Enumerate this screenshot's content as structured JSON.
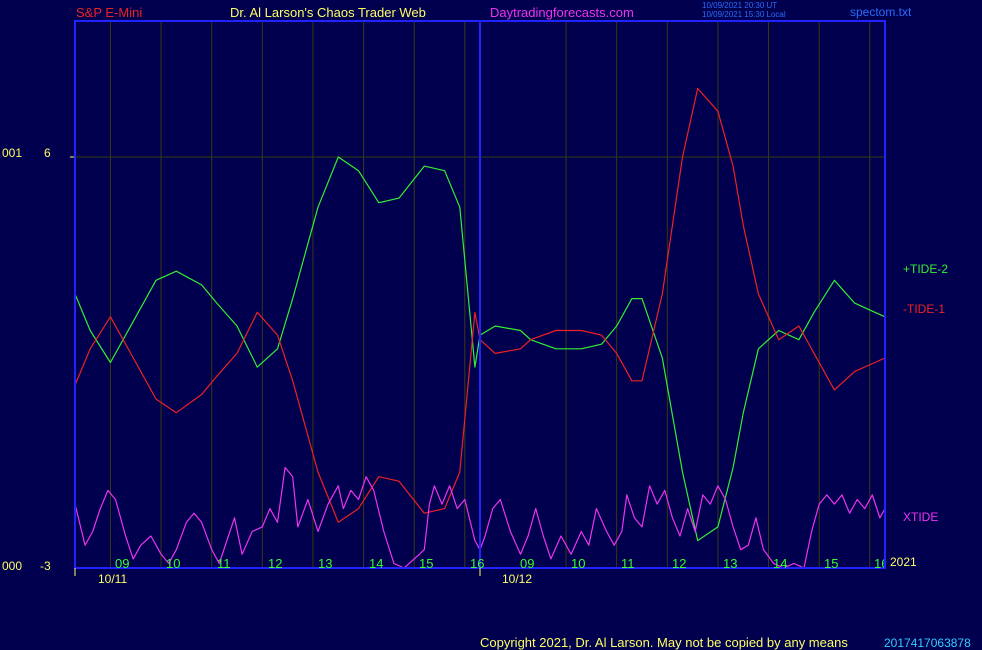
{
  "header": {
    "instrument": "S&P E-Mini",
    "site": "Dr. Al Larson's Chaos Trader Web",
    "url": "Daytradingforecasts.com",
    "stamp_utc": "10/09/2021 20:30 UT",
    "stamp_local": "10/09/2021 15:30 Local",
    "file": "spectom.txt"
  },
  "y_axis": {
    "top_prefix": "001",
    "top_label": "6",
    "bottom_prefix": "000",
    "bottom_label": "-3"
  },
  "x_axis": {
    "hour_ticks_day1": [
      "09",
      "10",
      "11",
      "12",
      "13",
      "14",
      "15",
      "16"
    ],
    "hour_ticks_day2": [
      "09",
      "10",
      "11",
      "12",
      "13",
      "14",
      "15",
      "16"
    ],
    "date1": "10/11",
    "date2": "10/12",
    "year": "2021"
  },
  "legend": {
    "tide2": "+TIDE-2",
    "tide1": "-TIDE-1",
    "xtide": "XTIDE"
  },
  "footer": {
    "copyright": "Copyright 2021, Dr. Al Larson. May not be copied by any means",
    "code": "2017417063878"
  },
  "colors": {
    "background": "#00004e",
    "frame": "#2222ff",
    "grid": "#3a3a12",
    "tide2": "#33ee33",
    "tide1": "#ee2222",
    "xtide": "#ee33ee",
    "title": "#ee2222",
    "site": "#ffff66",
    "url": "#ee33ee"
  },
  "chart_data": {
    "type": "line",
    "ylim": [
      -3,
      8
    ],
    "xlim": [
      0,
      16
    ],
    "series": [
      {
        "name": "+TIDE-2",
        "x": [
          0,
          0.3,
          0.7,
          1.2,
          1.6,
          2.0,
          2.5,
          2.8,
          3.2,
          3.6,
          4.0,
          4.3,
          4.8,
          5.2,
          5.6,
          6.0,
          6.4,
          6.9,
          7.3,
          7.6,
          7.9,
          8.0,
          8.3,
          8.8,
          9.0,
          9.5,
          10.0,
          10.4,
          10.7,
          11.0,
          11.2,
          11.6,
          12.0,
          12.3,
          12.7,
          13.0,
          13.2,
          13.5,
          13.9,
          14.3,
          14.6,
          15.0,
          15.4,
          15.8,
          16.0
        ],
        "y": [
          3.0,
          2.2,
          1.5,
          2.5,
          3.3,
          3.5,
          3.2,
          2.8,
          2.3,
          1.4,
          1.8,
          2.9,
          4.9,
          6.0,
          5.7,
          5.0,
          5.1,
          5.8,
          5.7,
          4.9,
          1.4,
          2.1,
          2.3,
          2.2,
          2.0,
          1.8,
          1.8,
          1.9,
          2.3,
          2.9,
          2.9,
          1.6,
          -0.9,
          -2.4,
          -2.1,
          -0.8,
          0.4,
          1.8,
          2.2,
          2.0,
          2.6,
          3.3,
          2.8,
          2.6,
          2.5
        ],
        "style": {
          "stroke": "#33ee33"
        }
      },
      {
        "name": "-TIDE-1",
        "x": [
          0,
          0.3,
          0.7,
          1.2,
          1.6,
          2.0,
          2.5,
          2.8,
          3.2,
          3.6,
          4.0,
          4.3,
          4.8,
          5.2,
          5.6,
          6.0,
          6.4,
          6.9,
          7.3,
          7.6,
          7.9,
          8.0,
          8.3,
          8.8,
          9.0,
          9.5,
          10.0,
          10.4,
          10.7,
          11.0,
          11.2,
          11.6,
          12.0,
          12.3,
          12.7,
          13.0,
          13.2,
          13.5,
          13.9,
          14.3,
          14.6,
          15.0,
          15.4,
          15.8,
          16.0
        ],
        "y": [
          1.0,
          1.8,
          2.5,
          1.5,
          0.7,
          0.4,
          0.8,
          1.2,
          1.7,
          2.6,
          2.1,
          1.1,
          -0.9,
          -2.0,
          -1.7,
          -1.0,
          -1.1,
          -1.8,
          -1.7,
          -0.9,
          2.6,
          2.0,
          1.7,
          1.8,
          2.0,
          2.2,
          2.2,
          2.1,
          1.7,
          1.1,
          1.1,
          3.0,
          6.0,
          7.5,
          7.0,
          5.8,
          4.5,
          3.0,
          2.0,
          2.3,
          1.7,
          0.9,
          1.3,
          1.5,
          1.6
        ],
        "style": {
          "stroke": "#ee2222"
        }
      },
      {
        "name": "XTIDE",
        "x": [
          0,
          0.2,
          0.35,
          0.5,
          0.65,
          0.8,
          1.0,
          1.15,
          1.3,
          1.5,
          1.7,
          1.85,
          2.0,
          2.2,
          2.35,
          2.5,
          2.7,
          2.85,
          3.0,
          3.15,
          3.3,
          3.5,
          3.7,
          3.85,
          4.0,
          4.15,
          4.3,
          4.4,
          4.6,
          4.8,
          5.0,
          5.2,
          5.3,
          5.45,
          5.6,
          5.75,
          5.9,
          6.1,
          6.3,
          6.5,
          6.7,
          6.9,
          7.0,
          7.1,
          7.25,
          7.4,
          7.55,
          7.7,
          7.9,
          8.0,
          8.1,
          8.25,
          8.4,
          8.6,
          8.8,
          8.95,
          9.1,
          9.25,
          9.4,
          9.6,
          9.8,
          10.0,
          10.15,
          10.3,
          10.5,
          10.65,
          10.8,
          10.9,
          11.05,
          11.2,
          11.35,
          11.5,
          11.65,
          11.8,
          11.95,
          12.1,
          12.25,
          12.4,
          12.55,
          12.7,
          12.85,
          13.0,
          13.15,
          13.3,
          13.45,
          13.6,
          13.8,
          14.0,
          14.2,
          14.4,
          14.55,
          14.7,
          14.85,
          15.0,
          15.15,
          15.3,
          15.45,
          15.6,
          15.75,
          15.9,
          16.0
        ],
        "y": [
          -1.6,
          -2.5,
          -2.2,
          -1.7,
          -1.3,
          -1.5,
          -2.3,
          -2.8,
          -2.5,
          -2.3,
          -2.7,
          -2.9,
          -2.6,
          -2.0,
          -1.8,
          -2.0,
          -2.6,
          -2.9,
          -2.4,
          -1.9,
          -2.7,
          -2.2,
          -2.1,
          -1.7,
          -2.0,
          -0.8,
          -1.0,
          -2.1,
          -1.5,
          -2.2,
          -1.6,
          -1.2,
          -1.7,
          -1.3,
          -1.5,
          -1.0,
          -1.3,
          -2.2,
          -2.9,
          -3.0,
          -2.8,
          -2.6,
          -1.6,
          -1.2,
          -1.6,
          -1.2,
          -1.7,
          -1.5,
          -2.4,
          -2.6,
          -2.3,
          -1.7,
          -1.5,
          -2.2,
          -2.7,
          -2.3,
          -1.7,
          -2.3,
          -2.8,
          -2.3,
          -2.7,
          -2.2,
          -2.5,
          -1.7,
          -2.2,
          -2.5,
          -2.2,
          -1.4,
          -1.9,
          -2.1,
          -1.2,
          -1.6,
          -1.3,
          -1.9,
          -2.3,
          -1.7,
          -2.2,
          -1.4,
          -1.6,
          -1.2,
          -1.5,
          -2.1,
          -2.6,
          -2.5,
          -1.9,
          -2.6,
          -2.9,
          -3.0,
          -2.9,
          -3.0,
          -2.2,
          -1.6,
          -1.4,
          -1.6,
          -1.4,
          -1.8,
          -1.5,
          -1.7,
          -1.4,
          -1.9,
          -1.7
        ],
        "style": {
          "stroke": "#ee33ee"
        }
      }
    ]
  }
}
